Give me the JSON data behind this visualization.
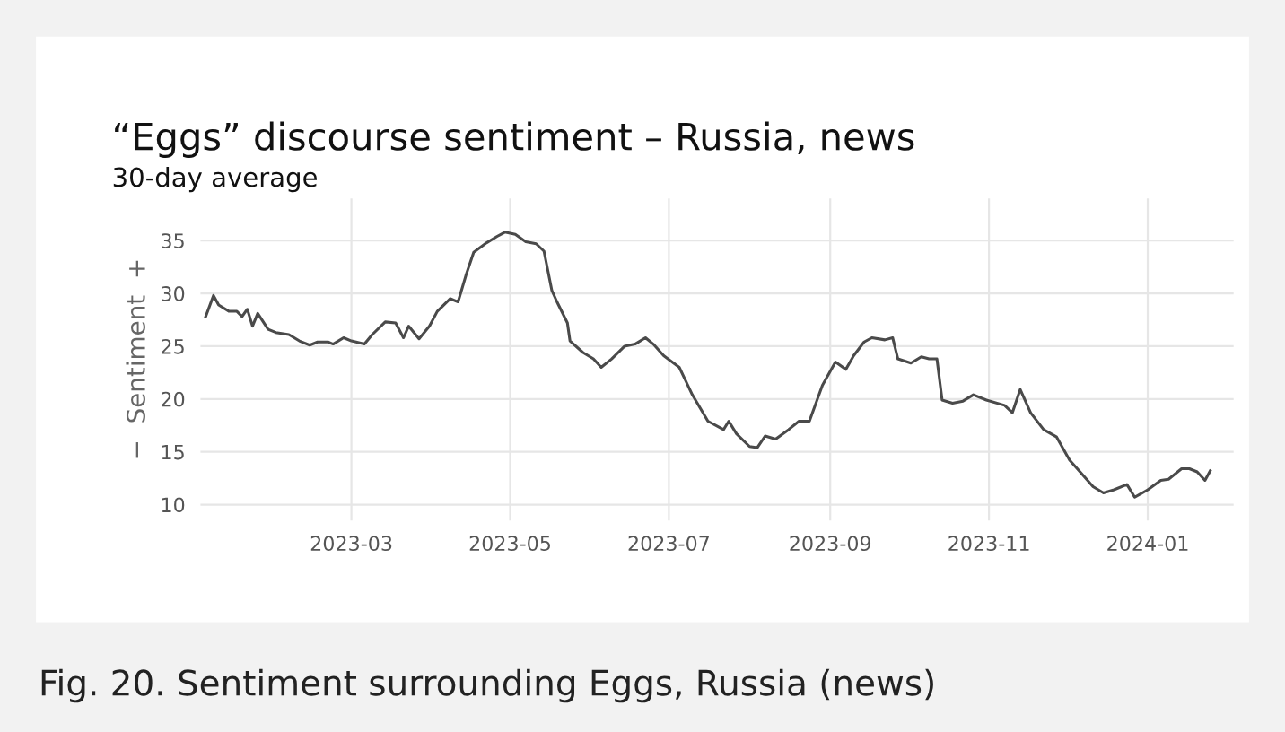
{
  "chart_data": {
    "type": "line",
    "title": "“Eggs” discourse sentiment – Russia, news",
    "subtitle": "30-day average",
    "ylabel": "−  Sentiment  +",
    "annotations": [
      "Fig. 20. Sentiment surrounding Eggs, Russia (news)"
    ],
    "x": [
      "2023-01-04",
      "2023-01-07",
      "2023-01-09",
      "2023-01-13",
      "2023-01-16",
      "2023-01-18",
      "2023-01-20",
      "2023-01-22",
      "2023-01-24",
      "2023-01-28",
      "2023-01-31",
      "2023-02-05",
      "2023-02-09",
      "2023-02-13",
      "2023-02-16",
      "2023-02-20",
      "2023-02-22",
      "2023-02-26",
      "2023-03-01",
      "2023-03-06",
      "2023-03-09",
      "2023-03-14",
      "2023-03-18",
      "2023-03-21",
      "2023-03-23",
      "2023-03-27",
      "2023-03-31",
      "2023-04-03",
      "2023-04-08",
      "2023-04-11",
      "2023-04-14",
      "2023-04-17",
      "2023-04-22",
      "2023-04-26",
      "2023-04-29",
      "2023-05-03",
      "2023-05-07",
      "2023-05-11",
      "2023-05-14",
      "2023-05-17",
      "2023-05-19",
      "2023-05-23",
      "2023-05-24",
      "2023-05-29",
      "2023-06-02",
      "2023-06-05",
      "2023-06-09",
      "2023-06-14",
      "2023-06-18",
      "2023-06-22",
      "2023-06-25",
      "2023-06-29",
      "2023-07-05",
      "2023-07-10",
      "2023-07-16",
      "2023-07-22",
      "2023-07-24",
      "2023-07-27",
      "2023-08-01",
      "2023-08-04",
      "2023-08-07",
      "2023-08-11",
      "2023-08-16",
      "2023-08-20",
      "2023-08-24",
      "2023-08-29",
      "2023-09-03",
      "2023-09-07",
      "2023-09-10",
      "2023-09-14",
      "2023-09-17",
      "2023-09-22",
      "2023-09-25",
      "2023-09-27",
      "2023-10-02",
      "2023-10-06",
      "2023-10-09",
      "2023-10-12",
      "2023-10-14",
      "2023-10-18",
      "2023-10-22",
      "2023-10-26",
      "2023-10-31",
      "2023-11-07",
      "2023-11-10",
      "2023-11-13",
      "2023-11-17",
      "2023-11-22",
      "2023-11-27",
      "2023-12-02",
      "2023-12-06",
      "2023-12-11",
      "2023-12-15",
      "2023-12-19",
      "2023-12-24",
      "2023-12-27",
      "2024-01-01",
      "2024-01-06",
      "2024-01-09",
      "2024-01-14",
      "2024-01-17",
      "2024-01-20",
      "2024-01-23",
      "2024-01-25"
    ],
    "series": [
      {
        "color": "#4a4a4a",
        "values": [
          27.8,
          29.8,
          28.9,
          28.3,
          28.3,
          27.8,
          28.5,
          26.9,
          28.1,
          26.6,
          26.3,
          26.1,
          25.5,
          25.1,
          25.4,
          25.4,
          25.2,
          25.8,
          25.5,
          25.2,
          26.1,
          27.3,
          27.2,
          25.8,
          26.9,
          25.7,
          26.9,
          28.3,
          29.5,
          29.2,
          31.7,
          33.9,
          34.8,
          35.4,
          35.8,
          35.6,
          34.9,
          34.7,
          34.0,
          30.3,
          29.2,
          27.2,
          25.5,
          24.4,
          23.8,
          23.0,
          23.8,
          25.0,
          25.2,
          25.8,
          25.2,
          24.1,
          23.0,
          20.4,
          17.9,
          17.1,
          17.9,
          16.7,
          15.5,
          15.4,
          16.5,
          16.2,
          17.1,
          17.9,
          17.9,
          21.3,
          23.5,
          22.8,
          24.1,
          25.4,
          25.8,
          25.6,
          25.8,
          23.8,
          23.4,
          24.0,
          23.8,
          23.8,
          19.9,
          19.6,
          19.8,
          20.4,
          19.9,
          19.4,
          18.7,
          20.9,
          18.7,
          17.1,
          16.4,
          14.2,
          13.1,
          11.7,
          11.1,
          11.4,
          11.9,
          10.7,
          11.4,
          12.3,
          12.4,
          13.4,
          13.4,
          13.1,
          12.3,
          13.2
        ]
      }
    ],
    "xlim": [
      "2023-01-02",
      "2024-02-03"
    ],
    "xticks": [
      {
        "value": "2023-03-01",
        "label": "2023-03"
      },
      {
        "value": "2023-05-01",
        "label": "2023-05"
      },
      {
        "value": "2023-07-01",
        "label": "2023-07"
      },
      {
        "value": "2023-09-01",
        "label": "2023-09"
      },
      {
        "value": "2023-11-01",
        "label": "2023-11"
      },
      {
        "value": "2024-01-01",
        "label": "2024-01"
      }
    ],
    "ylim": [
      8.5,
      39
    ],
    "yticks": [
      10,
      15,
      20,
      25,
      30,
      35
    ],
    "grid": true,
    "line_style": "solid",
    "marker": "none"
  }
}
